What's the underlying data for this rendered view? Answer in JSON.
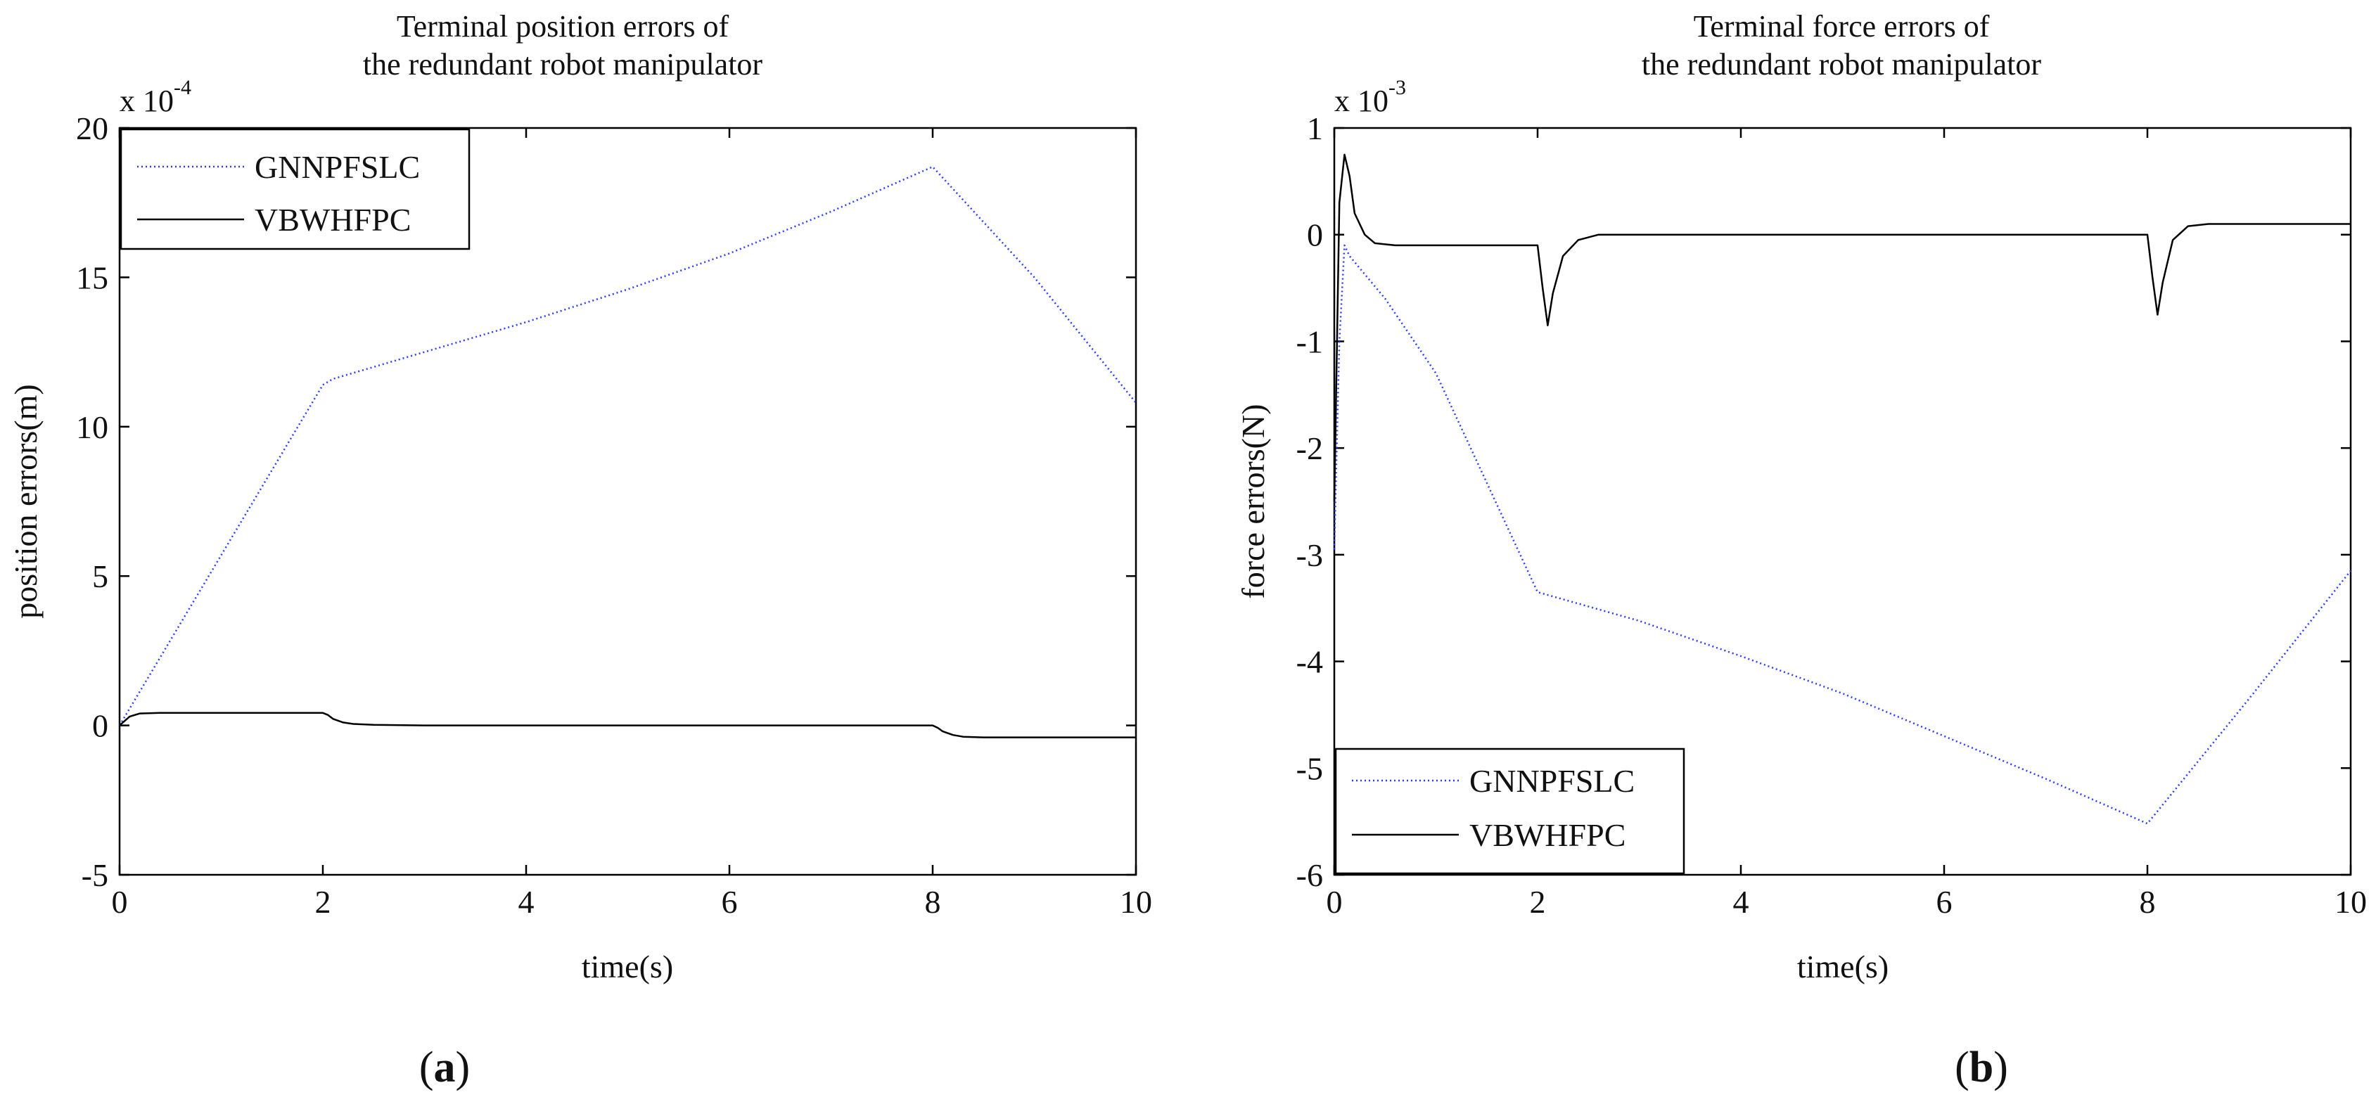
{
  "chart_data": [
    {
      "type": "line",
      "panel_label": "(a)",
      "panel_letter": "a",
      "title": [
        "Terminal position errors of",
        "the redundant robot manipulator"
      ],
      "xlabel": "time(s)",
      "ylabel": "position errors(m)",
      "multiplier_base": "x 10",
      "multiplier_exp": "-4",
      "xlim": [
        0,
        10
      ],
      "ylim": [
        -5,
        20
      ],
      "xticks": [
        0,
        2,
        4,
        6,
        8,
        10
      ],
      "yticks": [
        -5,
        0,
        5,
        10,
        15,
        20
      ],
      "legend_position": "top-left",
      "series": [
        {
          "name": "GNNPFSLC",
          "color": "#2b3cff",
          "style": "dotted",
          "x": [
            0,
            2,
            2.1,
            3,
            4,
            5,
            6,
            7,
            8,
            9,
            10
          ],
          "y": [
            0,
            11.4,
            11.6,
            12.5,
            13.5,
            14.6,
            15.8,
            17.2,
            18.7,
            15.0,
            10.8
          ]
        },
        {
          "name": "VBWHFPC",
          "color": "#000000",
          "style": "solid",
          "x": [
            0,
            0.1,
            0.2,
            0.4,
            1,
            1.5,
            2,
            2.05,
            2.1,
            2.2,
            2.3,
            2.5,
            3,
            4,
            5,
            6,
            7,
            8,
            8.05,
            8.1,
            8.2,
            8.3,
            8.5,
            9,
            10
          ],
          "y": [
            0,
            0.3,
            0.4,
            0.42,
            0.42,
            0.42,
            0.42,
            0.35,
            0.22,
            0.1,
            0.05,
            0.02,
            0.0,
            0.0,
            0.0,
            0.0,
            0.0,
            0.0,
            -0.08,
            -0.2,
            -0.32,
            -0.38,
            -0.4,
            -0.4,
            -0.4
          ]
        }
      ]
    },
    {
      "type": "line",
      "panel_label": "(b)",
      "panel_letter": "b",
      "title": [
        "Terminal force errors of",
        "the redundant robot manipulator"
      ],
      "xlabel": "time(s)",
      "ylabel": "force errors(N)",
      "multiplier_base": "x 10",
      "multiplier_exp": "-3",
      "xlim": [
        0,
        10
      ],
      "ylim": [
        -6,
        1
      ],
      "xticks": [
        0,
        2,
        4,
        6,
        8,
        10
      ],
      "yticks": [
        -6,
        -5,
        -4,
        -3,
        -2,
        -1,
        0,
        1
      ],
      "legend_position": "bottom-left",
      "series": [
        {
          "name": "GNNPFSLC",
          "color": "#2b3cff",
          "style": "dotted",
          "x": [
            0,
            0.05,
            0.1,
            0.15,
            0.5,
            1,
            2,
            3,
            4,
            5,
            6,
            7,
            8,
            9,
            10
          ],
          "y": [
            -2.95,
            -1.0,
            -0.1,
            -0.2,
            -0.6,
            -1.3,
            -3.35,
            -3.62,
            -3.95,
            -4.3,
            -4.7,
            -5.1,
            -5.52,
            -4.35,
            -3.15
          ]
        },
        {
          "name": "VBWHFPC",
          "color": "#000000",
          "style": "solid",
          "x": [
            0,
            0.05,
            0.1,
            0.15,
            0.2,
            0.3,
            0.4,
            0.6,
            1,
            1.5,
            2.0,
            2.05,
            2.1,
            2.15,
            2.25,
            2.4,
            2.6,
            3,
            4,
            5,
            6,
            7,
            8.0,
            8.05,
            8.1,
            8.15,
            8.25,
            8.4,
            8.6,
            9,
            10
          ],
          "y": [
            -2.5,
            0.3,
            0.75,
            0.55,
            0.2,
            0.0,
            -0.08,
            -0.1,
            -0.1,
            -0.1,
            -0.1,
            -0.5,
            -0.85,
            -0.55,
            -0.2,
            -0.05,
            0.0,
            0.0,
            0.0,
            0.0,
            0.0,
            0.0,
            0.0,
            -0.4,
            -0.75,
            -0.45,
            -0.05,
            0.08,
            0.1,
            0.1,
            0.1
          ]
        }
      ]
    }
  ]
}
